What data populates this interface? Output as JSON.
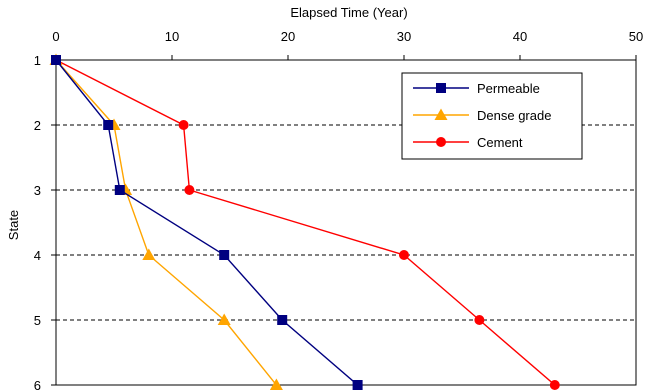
{
  "chart_data": {
    "type": "line",
    "xlabel": "Elapsed Time (Year)",
    "ylabel": "State",
    "xlim": [
      0,
      50
    ],
    "xticks": [
      0,
      10,
      20,
      30,
      40,
      50
    ],
    "ylim": [
      1,
      6
    ],
    "yticks": [
      1,
      2,
      3,
      4,
      5,
      6
    ],
    "y_inverted": true,
    "x_axis_position": "top",
    "grid": "horizontal dashed",
    "legend_position": "top-right",
    "series": [
      {
        "name": "Permeable",
        "color": "#000080",
        "marker": "square",
        "points": [
          [
            0,
            1
          ],
          [
            4.5,
            2
          ],
          [
            5.5,
            3
          ],
          [
            14.5,
            4
          ],
          [
            19.5,
            5
          ],
          [
            26,
            6
          ]
        ]
      },
      {
        "name": "Dense grade",
        "color": "#FFA500",
        "marker": "triangle",
        "points": [
          [
            0,
            1
          ],
          [
            5,
            2
          ],
          [
            6,
            3
          ],
          [
            8,
            4
          ],
          [
            14.5,
            5
          ],
          [
            19,
            6
          ]
        ]
      },
      {
        "name": "Cement",
        "color": "#FF0000",
        "marker": "circle",
        "points": [
          [
            0,
            1
          ],
          [
            11,
            2
          ],
          [
            11.5,
            3
          ],
          [
            30,
            4
          ],
          [
            36.5,
            5
          ],
          [
            43,
            6
          ]
        ]
      }
    ]
  }
}
